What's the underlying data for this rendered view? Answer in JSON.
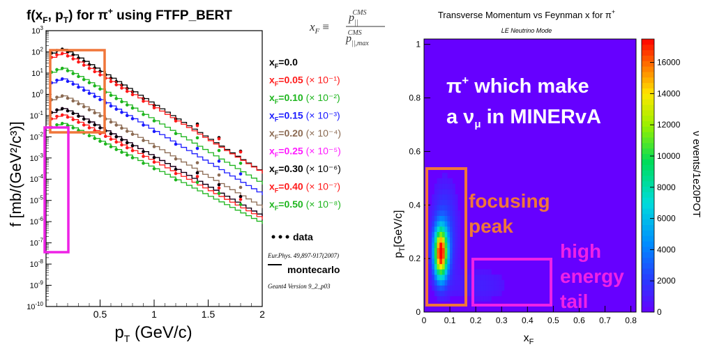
{
  "left_chart": {
    "type": "line",
    "title_main": "f(x",
    "title_sub1": "F",
    "title_mid": ", p",
    "title_sub2": "T",
    "title_end": ") for  π",
    "title_sup": "+",
    "title_tail": " using FTFP_BERT",
    "formula_lhs": "x",
    "formula_lhs_sub": "F",
    "formula_eq": "≡",
    "formula_num": "p",
    "formula_num_sub": "||",
    "formula_num_sup": "CMS",
    "formula_den": "p",
    "formula_den_sub": "||,max",
    "formula_den_sup": "CMS",
    "ylabel": "f [mb/(GeV²/c³)]",
    "xlabel": "p",
    "xlabel_sub": "T",
    "xlabel_unit": " (GeV/c)",
    "xlim": [
      0,
      2
    ],
    "ylim_log10": [
      -10,
      3
    ],
    "y_scale": "log",
    "x_ticks": [
      "0.5",
      "1",
      "1.5",
      "2"
    ],
    "x_tick_values": [
      0.5,
      1,
      1.5,
      2
    ],
    "y_tick_exponents": [
      3,
      2,
      1,
      0,
      -1,
      -2,
      -3,
      -4,
      -5,
      -6,
      -7,
      -8,
      -9,
      -10
    ],
    "legend": [
      {
        "label": "x_F=0.0",
        "scale": "",
        "color": "#000000"
      },
      {
        "label": "x_F=0.05",
        "scale": "(× 10⁻¹)",
        "color": "#ff1a1a"
      },
      {
        "label": "x_F=0.10",
        "scale": "(× 10⁻²)",
        "color": "#1db51d"
      },
      {
        "label": "x_F=0.15",
        "scale": "(× 10⁻³)",
        "color": "#1a1aff"
      },
      {
        "label": "x_F=0.20",
        "scale": "(× 10⁻⁴)",
        "color": "#8b6a52"
      },
      {
        "label": "x_F=0.25",
        "scale": "(× 10⁻⁵)",
        "color": "#ff1aff"
      },
      {
        "label": "x_F=0.30",
        "scale": "(× 10⁻⁶)",
        "color": "#000000"
      },
      {
        "label": "x_F=0.40",
        "scale": "(× 10⁻⁷)",
        "color": "#ff1a1a"
      },
      {
        "label": "x_F=0.50",
        "scale": "(× 10⁻⁸)",
        "color": "#1db51d"
      }
    ],
    "data_label": "data",
    "mc_label": "montecarlo",
    "citation": "Eur.Phys. 49,897-917(2007)",
    "version": "Geant4 Version 9_2_p03",
    "series": [
      {
        "name": "x_F=0.0",
        "color": "#000000",
        "offset": 0,
        "peak": 2.2,
        "slope": 3.2
      },
      {
        "name": "x_F=0.05",
        "color": "#ff1a1a",
        "offset": -1,
        "peak": 2.0,
        "slope": 3.1
      },
      {
        "name": "x_F=0.10",
        "color": "#1db51d",
        "offset": -2,
        "peak": 1.3,
        "slope": 3.0
      },
      {
        "name": "x_F=0.15",
        "color": "#1a1aff",
        "offset": -3,
        "peak": 0.8,
        "slope": 3.0
      },
      {
        "name": "x_F=0.20",
        "color": "#8b6a52",
        "offset": -4,
        "peak": 0.0,
        "slope": 2.9
      },
      {
        "name": "x_F=0.25",
        "color": "#ff1aff",
        "offset": -5,
        "peak": -0.6,
        "slope": 2.8
      },
      {
        "name": "x_F=0.30",
        "color": "#000000",
        "offset": -6,
        "peak": -0.6,
        "slope": 2.8
      },
      {
        "name": "x_F=0.40",
        "color": "#ff1a1a",
        "offset": -7,
        "peak": -0.9,
        "slope": 2.7
      },
      {
        "name": "x_F=0.50",
        "color": "#1db51d",
        "offset": -8,
        "peak": -1.3,
        "slope": 2.6
      }
    ],
    "highlight_colors": {
      "orange": "#f0763a",
      "magenta": "#ee22e6"
    }
  },
  "right_chart": {
    "type": "heatmap",
    "title": "Transverse Momentum vs Feynman x for π",
    "title_sup": "+",
    "subtitle": "LE Neutrino Mode",
    "xlabel": "x",
    "xlabel_sub": "F",
    "ylabel": "p",
    "ylabel_sub": "T",
    "ylabel_unit": "[GeV/c]",
    "zlabel": "ν events/1e20POT",
    "xlim": [
      0,
      0.82
    ],
    "ylim": [
      0,
      1.02
    ],
    "zlim": [
      0,
      17500
    ],
    "x_ticks": [
      "0",
      "0.1",
      "0.2",
      "0.3",
      "0.4",
      "0.5",
      "0.6",
      "0.7",
      "0.8"
    ],
    "x_tick_values": [
      0,
      0.1,
      0.2,
      0.3,
      0.4,
      0.5,
      0.6,
      0.7,
      0.8
    ],
    "y_ticks": [
      "0",
      "0.2",
      "0.4",
      "0.6",
      "0.8",
      "1"
    ],
    "y_tick_values": [
      0,
      0.2,
      0.4,
      0.6,
      0.8,
      1.0
    ],
    "z_ticks": [
      "0",
      "2000",
      "4000",
      "6000",
      "8000",
      "10000",
      "12000",
      "14000",
      "16000"
    ],
    "z_tick_values": [
      0,
      2000,
      4000,
      6000,
      8000,
      10000,
      12000,
      14000,
      16000
    ],
    "annotation_main_1": "π",
    "annotation_main_1_sup": "+",
    "annotation_main_1_rest": " which make",
    "annotation_main_2": "a ν",
    "annotation_main_2_sub": "μ",
    "annotation_main_2_rest": " in MINERvA",
    "annotation_focus_1": "focusing",
    "annotation_focus_2": "peak",
    "annotation_tail_1": "high",
    "annotation_tail_2": "energy",
    "annotation_tail_3": "tail",
    "peak_xF": 0.065,
    "peak_pT": 0.22,
    "peak_value": 17000,
    "focus_box": {
      "x": [
        0.01,
        0.15
      ],
      "y": [
        0.02,
        0.61
      ]
    },
    "tail_box": {
      "x": [
        0.18,
        0.48
      ],
      "y": [
        0.02,
        0.2
      ]
    },
    "colors": {
      "background": "#6600ff",
      "focus": "#f0763a",
      "tail": "#ee22e6",
      "annotation_white": "#ffffff"
    }
  }
}
